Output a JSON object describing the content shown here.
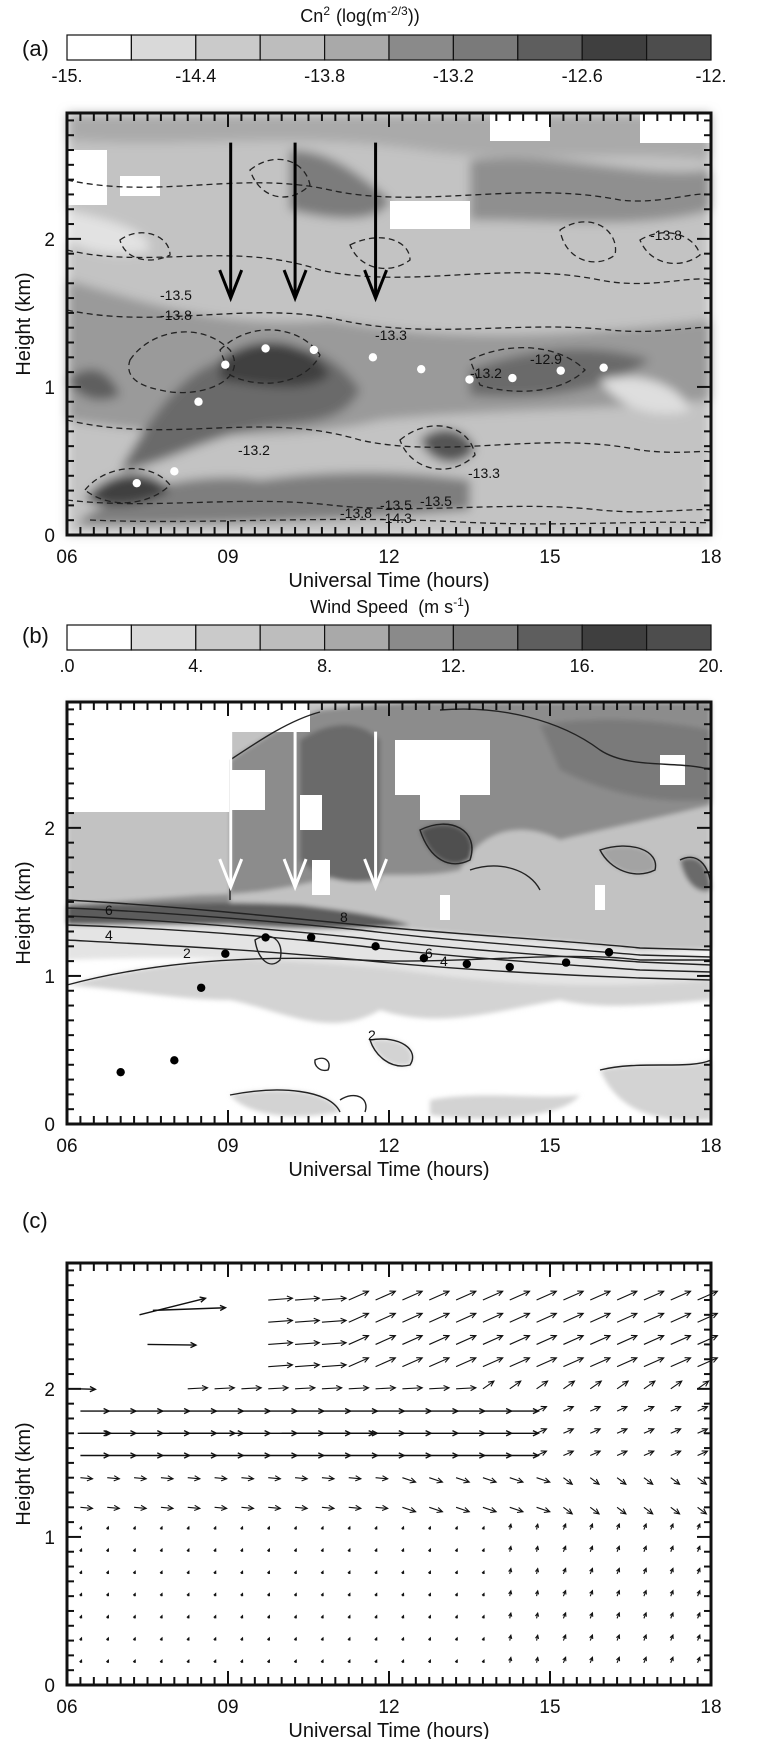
{
  "figure": {
    "panels": [
      {
        "id": "a",
        "label": "(a)",
        "colorbar": {
          "title_main": "Cn",
          "title_sup": "2",
          "title_unit": "(log(m",
          "title_unit_sup": "-2/3",
          "title_unit_end": "))",
          "levels": [
            -15.0,
            -14.4,
            -13.8,
            -13.2,
            -12.6,
            -12.0
          ],
          "tick_labels": [
            "-15.",
            "-14.4",
            "-13.8",
            "-13.2",
            "-12.6",
            "-12."
          ],
          "fills": [
            "#ffffff",
            "#d9d9d9",
            "#cacaca",
            "#bdbdbd",
            "#a9a9a9",
            "#8a8a8a",
            "#7a7a7a",
            "#5e5e5e",
            "#3f3f3f",
            "#4d4d4d"
          ]
        },
        "contour_labels": [
          "-13.5",
          "-13.8",
          "-13.3",
          "-12.9",
          "-13.2",
          "-13.2",
          "-13.3",
          "-13.5",
          "-13.5",
          "-13.8",
          "-13.8",
          "-14.3"
        ],
        "arrow_color": "#000000",
        "marker_color": "#ffffff"
      },
      {
        "id": "b",
        "label": "(b)",
        "colorbar": {
          "title": "Wind Speed",
          "title_unit": "(m s",
          "title_unit_sup": "-1",
          "title_unit_end": ")",
          "levels": [
            0,
            4,
            8,
            12,
            16,
            20
          ],
          "tick_labels": [
            ".0",
            "4.",
            "8.",
            "12.",
            "16.",
            "20."
          ],
          "fills": [
            "#ffffff",
            "#d9d9d9",
            "#cacaca",
            "#bdbdbd",
            "#a9a9a9",
            "#8a8a8a",
            "#7a7a7a",
            "#5e5e5e",
            "#3f3f3f",
            "#4d4d4d"
          ]
        },
        "contour_labels": [
          "6",
          "4",
          "2",
          "8",
          "6",
          "4",
          "2"
        ],
        "arrow_color": "#ffffff",
        "marker_color": "#000000"
      },
      {
        "id": "c",
        "label": "(c)"
      }
    ]
  },
  "chart_data": [
    {
      "type": "heatmap",
      "panel": "(a)",
      "quantity": "Cn2 (log(m-2/3))",
      "xlabel": "Universal Time (hours)",
      "ylabel": "Height (km)",
      "xlim": [
        6,
        18
      ],
      "ylim": [
        0,
        2.85
      ],
      "x_ticks": [
        "06",
        "09",
        "12",
        "15",
        "18"
      ],
      "x_tick_values": [
        6,
        9,
        12,
        15,
        18
      ],
      "y_ticks": [
        "0",
        "1",
        "2"
      ],
      "y_tick_values": [
        0,
        1,
        2
      ],
      "colorbar_range": [
        -15.0,
        -12.0
      ],
      "arrows_ut": [
        9.05,
        10.25,
        11.75
      ],
      "arrows_height_km": [
        2.65,
        1.6
      ],
      "markers": [
        {
          "x": 7.3,
          "y": 0.35
        },
        {
          "x": 8.0,
          "y": 0.43
        },
        {
          "x": 8.45,
          "y": 0.9
        },
        {
          "x": 8.95,
          "y": 1.15
        },
        {
          "x": 9.7,
          "y": 1.26
        },
        {
          "x": 10.6,
          "y": 1.25
        },
        {
          "x": 11.7,
          "y": 1.2
        },
        {
          "x": 12.6,
          "y": 1.12
        },
        {
          "x": 13.5,
          "y": 1.05
        },
        {
          "x": 14.3,
          "y": 1.06
        },
        {
          "x": 15.2,
          "y": 1.11
        },
        {
          "x": 16.0,
          "y": 1.13
        }
      ]
    },
    {
      "type": "heatmap",
      "panel": "(b)",
      "quantity": "Wind Speed (m s-1)",
      "xlabel": "Universal Time (hours)",
      "ylabel": "Height (km)",
      "xlim": [
        6,
        18
      ],
      "ylim": [
        0,
        2.85
      ],
      "x_ticks": [
        "06",
        "09",
        "12",
        "15",
        "18"
      ],
      "x_tick_values": [
        6,
        9,
        12,
        15,
        18
      ],
      "y_ticks": [
        "0",
        "1",
        "2"
      ],
      "y_tick_values": [
        0,
        1,
        2
      ],
      "colorbar_range": [
        0,
        20
      ],
      "arrows_ut": [
        9.05,
        10.25,
        11.75
      ],
      "arrows_height_km": [
        2.65,
        1.6
      ],
      "markers": [
        {
          "x": 7.0,
          "y": 0.35
        },
        {
          "x": 8.0,
          "y": 0.43
        },
        {
          "x": 8.5,
          "y": 0.92
        },
        {
          "x": 8.95,
          "y": 1.15
        },
        {
          "x": 9.7,
          "y": 1.26
        },
        {
          "x": 10.55,
          "y": 1.26
        },
        {
          "x": 11.75,
          "y": 1.2
        },
        {
          "x": 12.65,
          "y": 1.12
        },
        {
          "x": 13.45,
          "y": 1.08
        },
        {
          "x": 14.25,
          "y": 1.06
        },
        {
          "x": 15.3,
          "y": 1.09
        },
        {
          "x": 16.1,
          "y": 1.16
        }
      ]
    },
    {
      "type": "vector",
      "panel": "(c)",
      "xlabel": "Universal Time (hours)",
      "ylabel": "Height (km)",
      "xlim": [
        6,
        18
      ],
      "ylim": [
        0,
        2.85
      ],
      "x_ticks": [
        "06",
        "09",
        "12",
        "15",
        "18"
      ],
      "x_tick_values": [
        6,
        9,
        12,
        15,
        18
      ],
      "y_ticks": [
        "0",
        "1",
        "2"
      ],
      "y_tick_values": [
        0,
        1,
        2
      ],
      "vectors": [
        {
          "x": 7.35,
          "y": 2.5,
          "u": 3.0,
          "v": 0.75
        },
        {
          "x": 7.6,
          "y": 2.53,
          "u": 3.3,
          "v": 0.12
        },
        {
          "x": 7.5,
          "y": 2.3,
          "u": 2.2,
          "v": -0.03
        },
        {
          "x": 6.2,
          "y": 2.0,
          "u": 0.8,
          "v": -0.02
        },
        {
          "x": 6.2,
          "y": 1.7,
          "u": 1.5,
          "v": 0.0
        },
        {
          "x": 7.9,
          "y": 1.7,
          "u": 3.0,
          "v": 0.0
        },
        {
          "x": 10.0,
          "y": 1.7,
          "u": 4.2,
          "v": 0.0
        }
      ],
      "vector_grid_note_rows_km": [
        0.15,
        0.3,
        0.45,
        0.6,
        0.75,
        0.9,
        1.05,
        1.2,
        1.4,
        1.55,
        1.7,
        1.85,
        2.0,
        2.15,
        2.3,
        2.45,
        2.6
      ]
    }
  ]
}
